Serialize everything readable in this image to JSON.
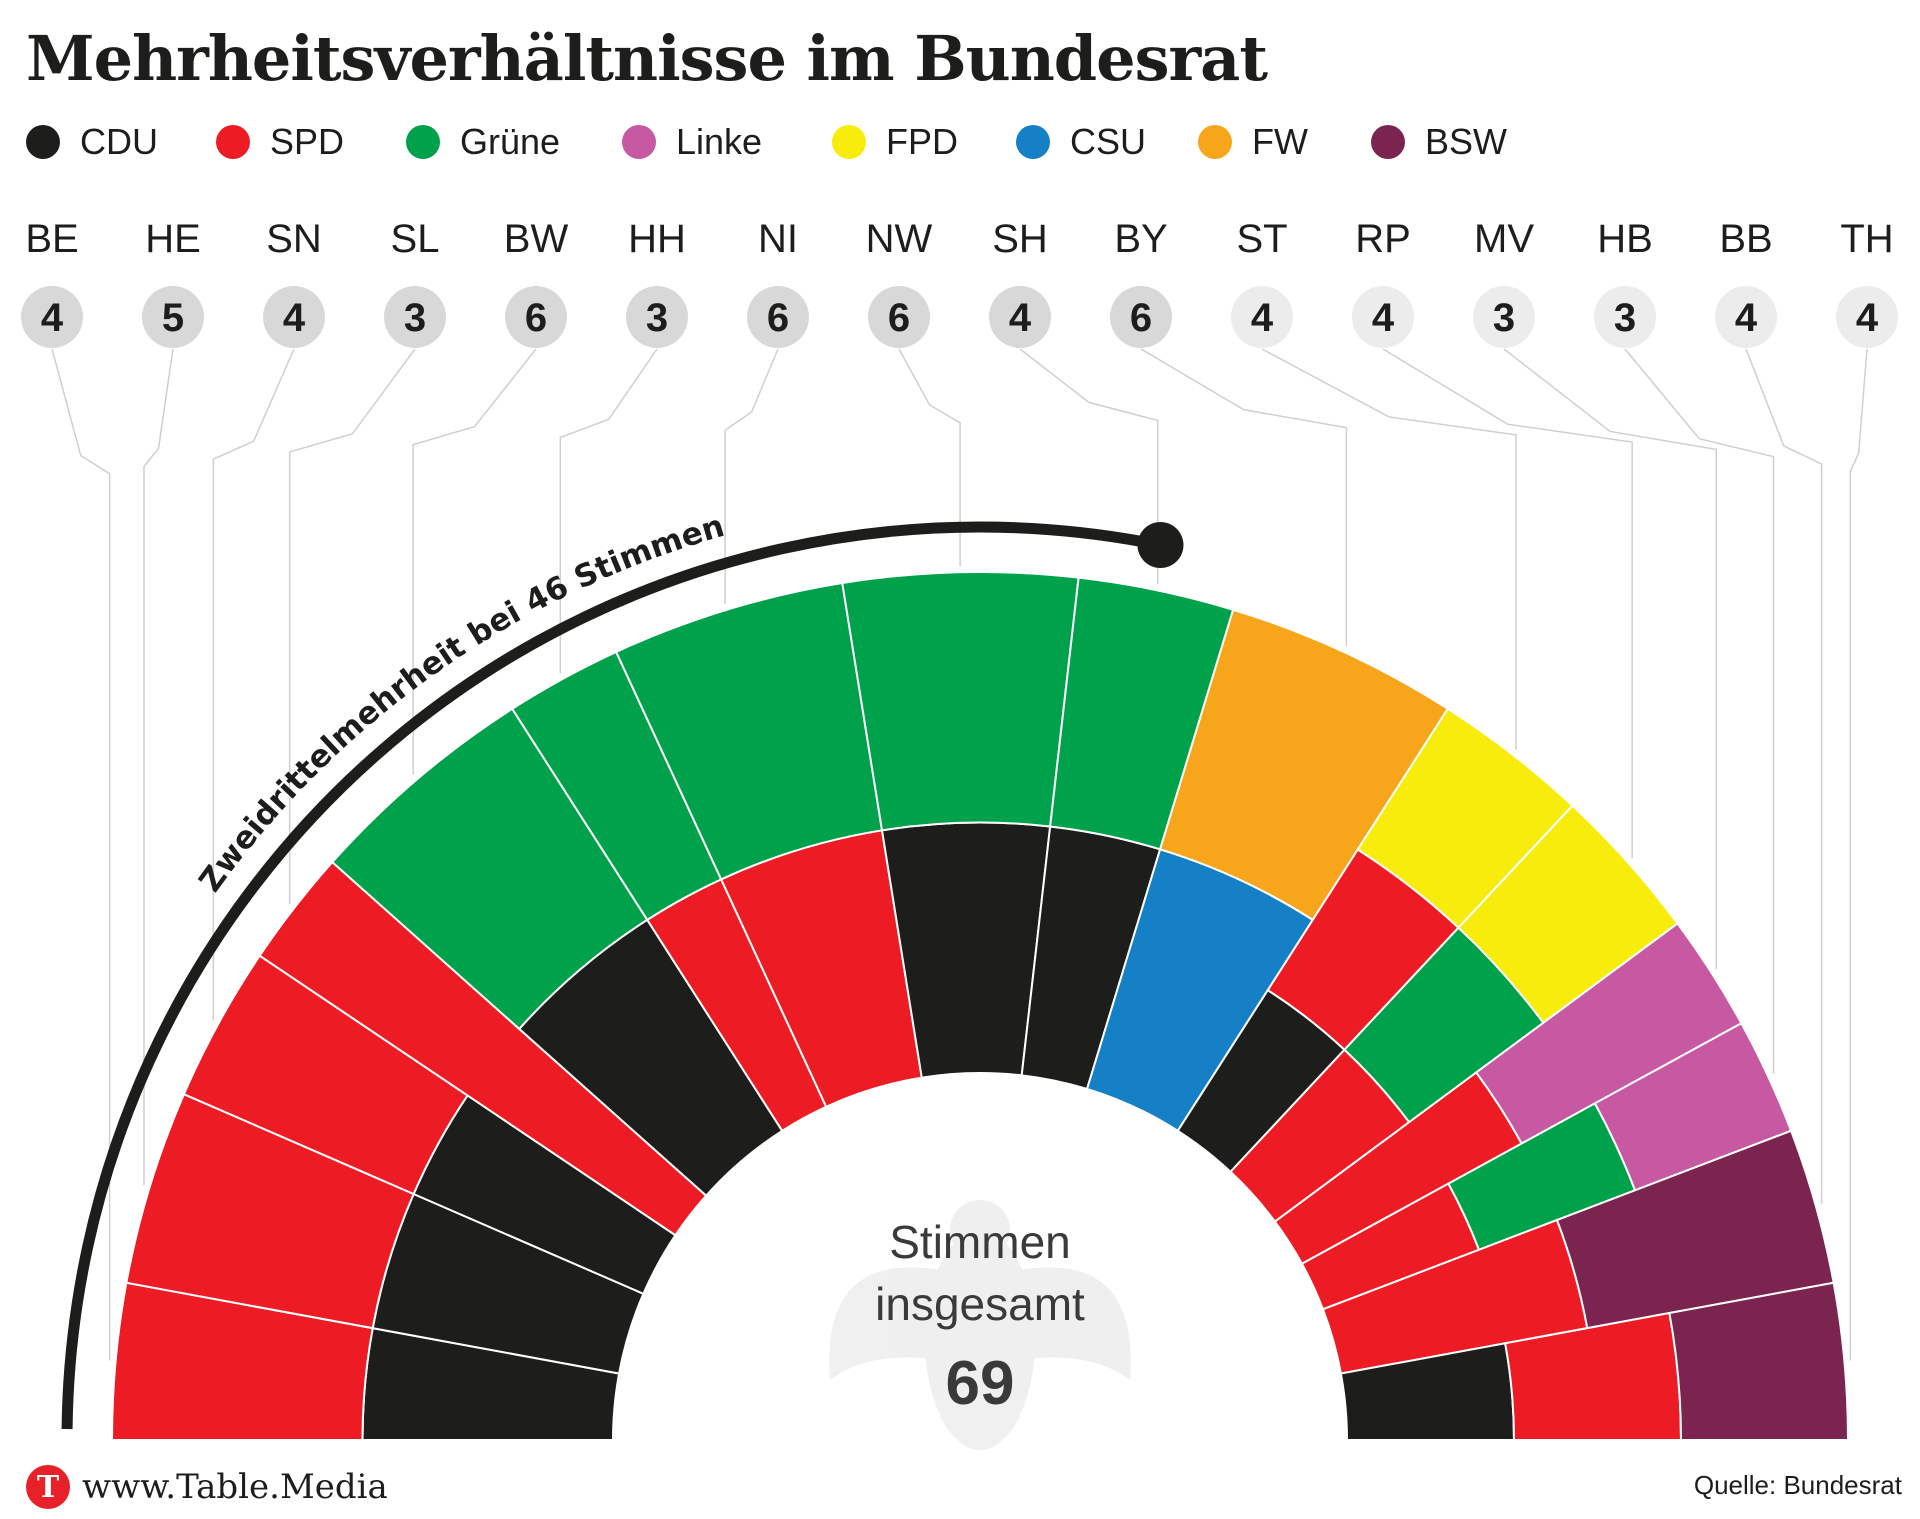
{
  "title": "Mehrheitsverhältnisse im Bundesrat",
  "legend": [
    {
      "label": "CDU",
      "color": "#1d1d1b"
    },
    {
      "label": "SPD",
      "color": "#ed1c24"
    },
    {
      "label": "Grüne",
      "color": "#00a14b"
    },
    {
      "label": "Linke",
      "color": "#c758a2"
    },
    {
      "label": "FPD",
      "color": "#f7ec0c"
    },
    {
      "label": "CSU",
      "color": "#1580c5"
    },
    {
      "label": "FW",
      "color": "#f7a51b"
    },
    {
      "label": "BSW",
      "color": "#7b2450"
    }
  ],
  "chart_data": {
    "type": "parliament-semicircle",
    "center_label": "Stimmen\ninsgesamt",
    "total": 69,
    "majority_label": "Zweidrittelmehrheit bei 46 Stimmen",
    "majority_threshold": 46,
    "states": [
      {
        "code": "BE",
        "votes": 4,
        "parties": [
          "CDU",
          "SPD"
        ],
        "governing": true
      },
      {
        "code": "HE",
        "votes": 5,
        "parties": [
          "CDU",
          "SPD"
        ],
        "governing": true
      },
      {
        "code": "SN",
        "votes": 4,
        "parties": [
          "CDU",
          "SPD"
        ],
        "governing": true
      },
      {
        "code": "SL",
        "votes": 3,
        "parties": [
          "SPD"
        ],
        "governing": true
      },
      {
        "code": "BW",
        "votes": 6,
        "parties": [
          "CDU",
          "Grüne"
        ],
        "governing": true
      },
      {
        "code": "HH",
        "votes": 3,
        "parties": [
          "SPD",
          "Grüne"
        ],
        "governing": true
      },
      {
        "code": "NI",
        "votes": 6,
        "parties": [
          "SPD",
          "Grüne"
        ],
        "governing": true
      },
      {
        "code": "NW",
        "votes": 6,
        "parties": [
          "CDU",
          "Grüne"
        ],
        "governing": true
      },
      {
        "code": "SH",
        "votes": 4,
        "parties": [
          "CDU",
          "Grüne"
        ],
        "governing": true
      },
      {
        "code": "BY",
        "votes": 6,
        "parties": [
          "CSU",
          "FW"
        ],
        "governing": true
      },
      {
        "code": "ST",
        "votes": 4,
        "parties": [
          "CDU",
          "SPD",
          "FPD"
        ],
        "governing": false
      },
      {
        "code": "RP",
        "votes": 4,
        "parties": [
          "SPD",
          "Grüne",
          "FPD"
        ],
        "governing": false
      },
      {
        "code": "MV",
        "votes": 3,
        "parties": [
          "SPD",
          "Linke"
        ],
        "governing": false
      },
      {
        "code": "HB",
        "votes": 3,
        "parties": [
          "SPD",
          "Grüne",
          "Linke"
        ],
        "governing": false
      },
      {
        "code": "BB",
        "votes": 4,
        "parties": [
          "SPD",
          "BSW"
        ],
        "governing": false
      },
      {
        "code": "TH",
        "votes": 4,
        "parties": [
          "CDU",
          "SPD",
          "BSW"
        ],
        "governing": false
      }
    ]
  },
  "footer": {
    "logo_letter": "T",
    "site": "www.Table.Media",
    "source": "Quelle: Bundesrat"
  }
}
